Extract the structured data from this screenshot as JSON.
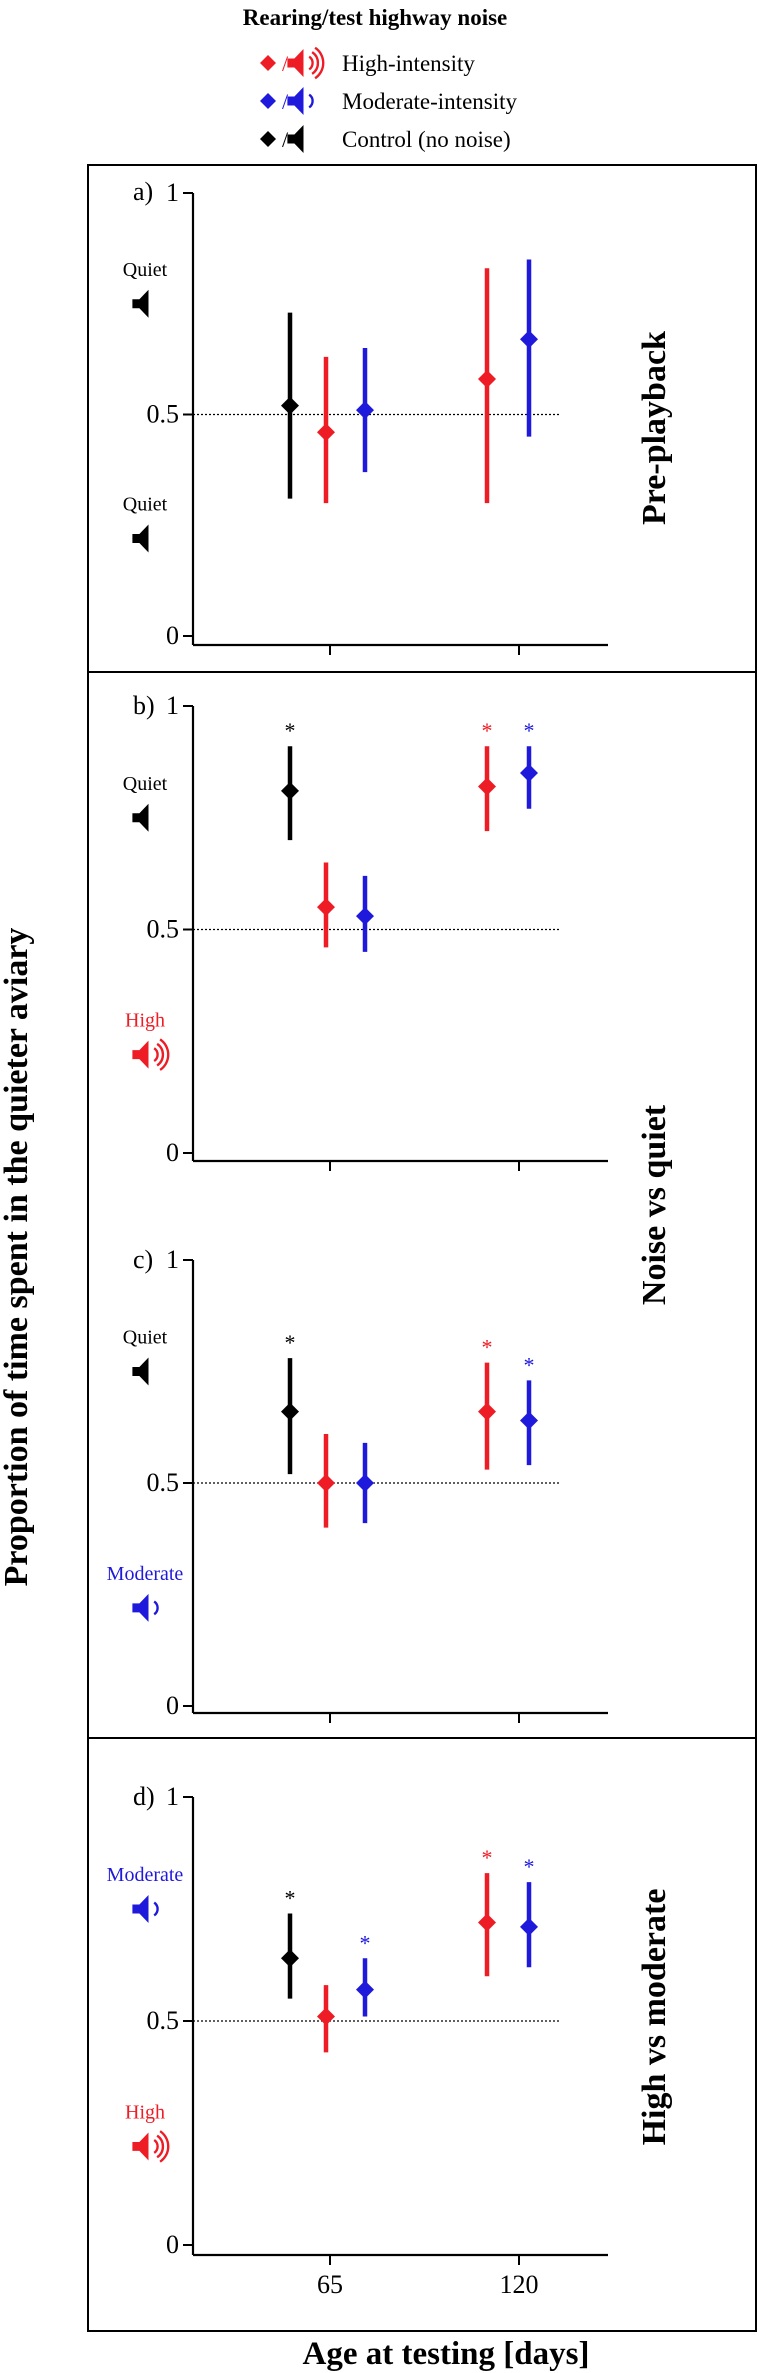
{
  "legend": {
    "title": "Rearing/test highway noise",
    "entries": [
      {
        "label": "High-intensity",
        "color": "#ee1c25",
        "waves": 3
      },
      {
        "label": "Moderate-intensity",
        "color": "#1f1adb",
        "waves": 1
      },
      {
        "label": "Control (no noise)",
        "color": "#000000",
        "waves": 0
      }
    ]
  },
  "colors": {
    "control": "#000000",
    "high": "#ee1c25",
    "moderate": "#1f1adb"
  },
  "axes": {
    "ylabel": "Proportion of time spent in the quieter aviary",
    "xlabel": "Age at testing [days]",
    "xticks": [
      "65",
      "120"
    ],
    "yticks": [
      "0",
      "0.5",
      "1"
    ]
  },
  "chart_data": [
    {
      "type": "scatter",
      "panel": "a)",
      "side_label": "Pre-playback",
      "xlabel": "Age at testing [days]",
      "ylabel": "Proportion of time spent in the quieter aviary",
      "ylim": [
        0,
        1
      ],
      "reference_line": 0.5,
      "categories": [
        "65",
        "120"
      ],
      "speaker_top": {
        "label": "Quiet",
        "color": "#000000",
        "waves": 0
      },
      "speaker_bottom": {
        "label": "Quiet",
        "color": "#000000",
        "waves": 0
      },
      "series": [
        {
          "name": "Control (no noise)",
          "color": "#000000",
          "points": [
            {
              "x": "65",
              "mean": 0.52,
              "lo": 0.31,
              "hi": 0.73,
              "sig": false
            }
          ]
        },
        {
          "name": "High-intensity",
          "color": "#ee1c25",
          "points": [
            {
              "x": "65",
              "mean": 0.46,
              "lo": 0.3,
              "hi": 0.63,
              "sig": false
            },
            {
              "x": "120",
              "mean": 0.58,
              "lo": 0.3,
              "hi": 0.83,
              "sig": false
            }
          ]
        },
        {
          "name": "Moderate-intensity",
          "color": "#1f1adb",
          "points": [
            {
              "x": "65",
              "mean": 0.51,
              "lo": 0.37,
              "hi": 0.65,
              "sig": false
            },
            {
              "x": "120",
              "mean": 0.67,
              "lo": 0.45,
              "hi": 0.85,
              "sig": false
            }
          ]
        }
      ]
    },
    {
      "type": "scatter",
      "panel": "b)",
      "side_label": "",
      "xlabel": "Age at testing [days]",
      "ylabel": "Proportion of time spent in the quieter aviary",
      "ylim": [
        0,
        1
      ],
      "reference_line": 0.5,
      "categories": [
        "65",
        "120"
      ],
      "speaker_top": {
        "label": "Quiet",
        "color": "#000000",
        "waves": 0
      },
      "speaker_bottom": {
        "label": "High",
        "color": "#ee1c25",
        "waves": 3
      },
      "series": [
        {
          "name": "Control (no noise)",
          "color": "#000000",
          "points": [
            {
              "x": "65",
              "mean": 0.81,
              "lo": 0.7,
              "hi": 0.91,
              "sig": true
            }
          ]
        },
        {
          "name": "High-intensity",
          "color": "#ee1c25",
          "points": [
            {
              "x": "65",
              "mean": 0.55,
              "lo": 0.46,
              "hi": 0.65,
              "sig": false
            },
            {
              "x": "120",
              "mean": 0.82,
              "lo": 0.72,
              "hi": 0.91,
              "sig": true
            }
          ]
        },
        {
          "name": "Moderate-intensity",
          "color": "#1f1adb",
          "points": [
            {
              "x": "65",
              "mean": 0.53,
              "lo": 0.45,
              "hi": 0.62,
              "sig": false
            },
            {
              "x": "120",
              "mean": 0.85,
              "lo": 0.77,
              "hi": 0.91,
              "sig": true
            }
          ]
        }
      ]
    },
    {
      "type": "scatter",
      "panel": "c)",
      "side_label": "",
      "xlabel": "Age at testing [days]",
      "ylabel": "Proportion of time spent in the quieter aviary",
      "ylim": [
        0,
        1
      ],
      "reference_line": 0.5,
      "categories": [
        "65",
        "120"
      ],
      "speaker_top": {
        "label": "Quiet",
        "color": "#000000",
        "waves": 0
      },
      "speaker_bottom": {
        "label": "Moderate",
        "color": "#1f1adb",
        "waves": 1
      },
      "series": [
        {
          "name": "Control (no noise)",
          "color": "#000000",
          "points": [
            {
              "x": "65",
              "mean": 0.66,
              "lo": 0.52,
              "hi": 0.78,
              "sig": true
            }
          ]
        },
        {
          "name": "High-intensity",
          "color": "#ee1c25",
          "points": [
            {
              "x": "65",
              "mean": 0.5,
              "lo": 0.4,
              "hi": 0.61,
              "sig": false
            },
            {
              "x": "120",
              "mean": 0.66,
              "lo": 0.53,
              "hi": 0.77,
              "sig": true
            }
          ]
        },
        {
          "name": "Moderate-intensity",
          "color": "#1f1adb",
          "points": [
            {
              "x": "65",
              "mean": 0.5,
              "lo": 0.41,
              "hi": 0.59,
              "sig": false
            },
            {
              "x": "120",
              "mean": 0.64,
              "lo": 0.54,
              "hi": 0.73,
              "sig": true
            }
          ]
        }
      ]
    },
    {
      "type": "scatter",
      "panel": "d)",
      "side_label": "High vs moderate",
      "xlabel": "Age at testing [days]",
      "ylabel": "Proportion of time spent in the quieter aviary",
      "ylim": [
        0,
        1
      ],
      "reference_line": 0.5,
      "categories": [
        "65",
        "120"
      ],
      "speaker_top": {
        "label": "Moderate",
        "color": "#1f1adb",
        "waves": 1
      },
      "speaker_bottom": {
        "label": "High",
        "color": "#ee1c25",
        "waves": 3
      },
      "series": [
        {
          "name": "Control (no noise)",
          "color": "#000000",
          "points": [
            {
              "x": "65",
              "mean": 0.64,
              "lo": 0.55,
              "hi": 0.74,
              "sig": true
            }
          ]
        },
        {
          "name": "High-intensity",
          "color": "#ee1c25",
          "points": [
            {
              "x": "65",
              "mean": 0.51,
              "lo": 0.43,
              "hi": 0.58,
              "sig": false
            },
            {
              "x": "120",
              "mean": 0.72,
              "lo": 0.6,
              "hi": 0.83,
              "sig": true
            }
          ]
        },
        {
          "name": "Moderate-intensity",
          "color": "#1f1adb",
          "points": [
            {
              "x": "65",
              "mean": 0.57,
              "lo": 0.51,
              "hi": 0.64,
              "sig": true
            },
            {
              "x": "120",
              "mean": 0.71,
              "lo": 0.62,
              "hi": 0.81,
              "sig": true
            }
          ]
        }
      ]
    }
  ],
  "shared_side_label": "Noise vs quiet"
}
